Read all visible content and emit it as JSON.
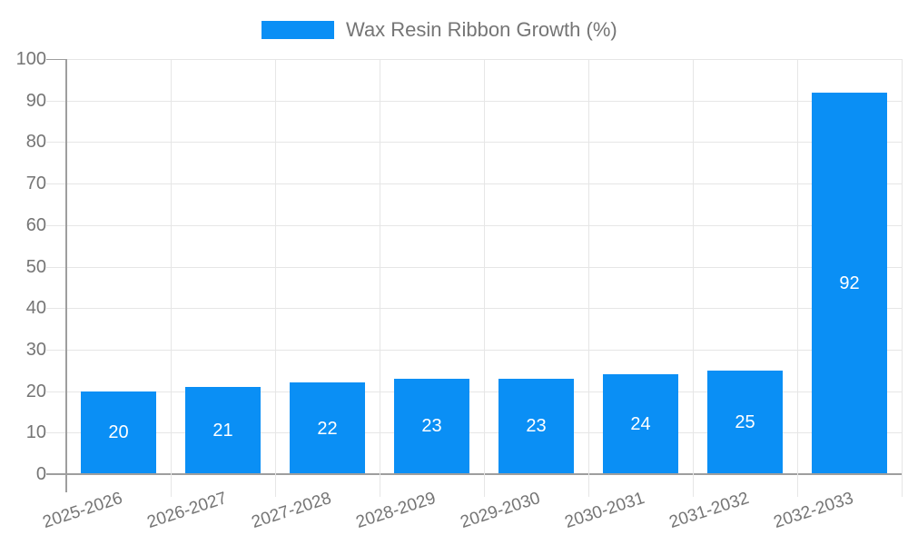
{
  "legend": {
    "label": "Wax Resin Ribbon Growth (%)"
  },
  "chart_data": {
    "type": "bar",
    "title": "Wax Resin Ribbon Growth (%)",
    "categories": [
      "2025-2026",
      "2026-2027",
      "2027-2028",
      "2028-2029",
      "2029-2030",
      "2030-2031",
      "2031-2032",
      "2032-2033"
    ],
    "series": [
      {
        "name": "Wax Resin Ribbon Growth (%)",
        "values": [
          20,
          21,
          22,
          23,
          23,
          24,
          25,
          92
        ]
      }
    ],
    "value_labels": [
      "20",
      "21",
      "22",
      "23",
      "23",
      "24",
      "25",
      "92"
    ],
    "xlabel": "",
    "ylabel": "",
    "ylim": [
      0,
      100
    ],
    "ytick_step": 10,
    "ytick_labels": [
      "0",
      "10",
      "20",
      "30",
      "40",
      "50",
      "60",
      "70",
      "80",
      "90",
      "100"
    ],
    "grid": true,
    "legend_position": "top-center",
    "colors": {
      "bar": "#0a8ff5",
      "axis": "#9e9e9e",
      "gridline": "#e6e6e6",
      "tick_text": "#757575",
      "value_label_text": "#ffffff",
      "background": "#ffffff"
    }
  }
}
